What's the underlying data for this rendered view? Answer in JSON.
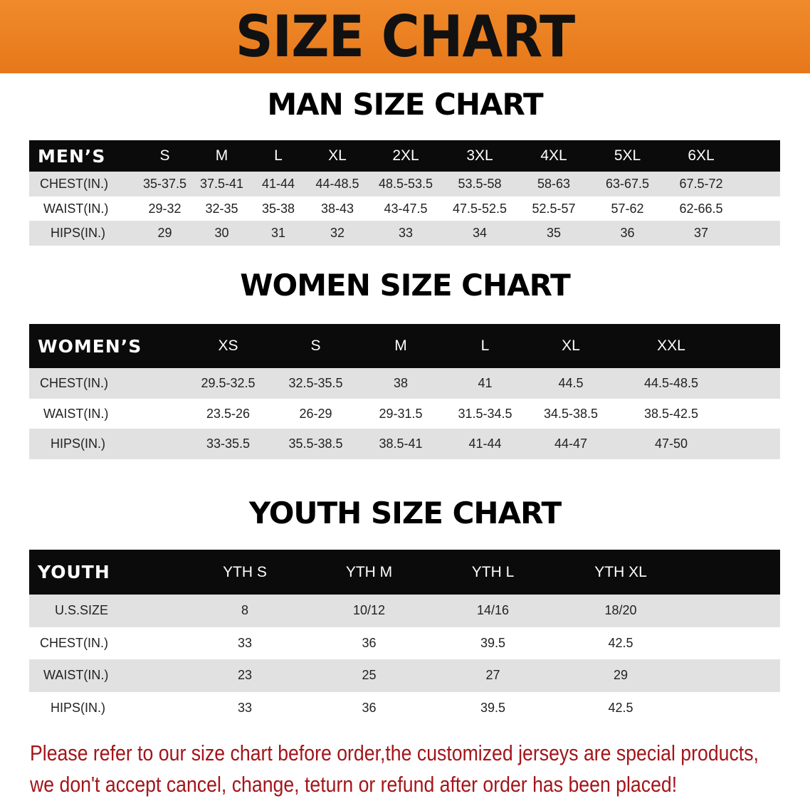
{
  "title": "SIZE CHART",
  "colors": {
    "banner": "#e87d1e",
    "header_row": "#0b0b0b",
    "stripe": "#e1e1e1",
    "note": "#a3151a"
  },
  "men": {
    "section_title": "MAN SIZE CHART",
    "header": [
      "MEN’S",
      "S",
      "M",
      "L",
      "XL",
      "2XL",
      "3XL",
      "4XL",
      "5XL",
      "6XL"
    ],
    "rows": [
      [
        "CHEST(IN.)",
        "35-37.5",
        "37.5-41",
        "41-44",
        "44-48.5",
        "48.5-53.5",
        "53.5-58",
        "58-63",
        "63-67.5",
        "67.5-72"
      ],
      [
        "WAIST(IN.)",
        "29-32",
        "32-35",
        "35-38",
        "38-43",
        "43-47.5",
        "47.5-52.5",
        "52.5-57",
        "57-62",
        "62-66.5"
      ],
      [
        "HIPS(IN.)",
        "29",
        "30",
        "31",
        "32",
        "33",
        "34",
        "35",
        "36",
        "37"
      ]
    ]
  },
  "women": {
    "section_title": "WOMEN SIZE CHART",
    "header": [
      "WOMEN’S",
      "XS",
      "S",
      "M",
      "L",
      "XL",
      "XXL"
    ],
    "rows": [
      [
        "CHEST(IN.)",
        "29.5-32.5",
        "32.5-35.5",
        "38",
        "41",
        "44.5",
        "44.5-48.5"
      ],
      [
        "WAIST(IN.)",
        "23.5-26",
        "26-29",
        "29-31.5",
        "31.5-34.5",
        "34.5-38.5",
        "38.5-42.5"
      ],
      [
        "HIPS(IN.)",
        "33-35.5",
        "35.5-38.5",
        "38.5-41",
        "41-44",
        "44-47",
        "47-50"
      ]
    ]
  },
  "youth": {
    "section_title": "YOUTH SIZE CHART",
    "header": [
      "YOUTH",
      "YTH S",
      "YTH M",
      "YTH L",
      "YTH XL"
    ],
    "rows": [
      [
        "U.S.SIZE",
        "8",
        "10/12",
        "14/16",
        "18/20"
      ],
      [
        "CHEST(IN.)",
        "33",
        "36",
        "39.5",
        "42.5"
      ],
      [
        "WAIST(IN.)",
        "23",
        "25",
        "27",
        "29"
      ],
      [
        "HIPS(IN.)",
        "33",
        "36",
        "39.5",
        "42.5"
      ]
    ]
  },
  "note": {
    "line1": "Please refer to our size chart before order,the customized jerseys are special products,",
    "line2": "we don't accept cancel, change, teturn or refund after order has been placed!"
  }
}
